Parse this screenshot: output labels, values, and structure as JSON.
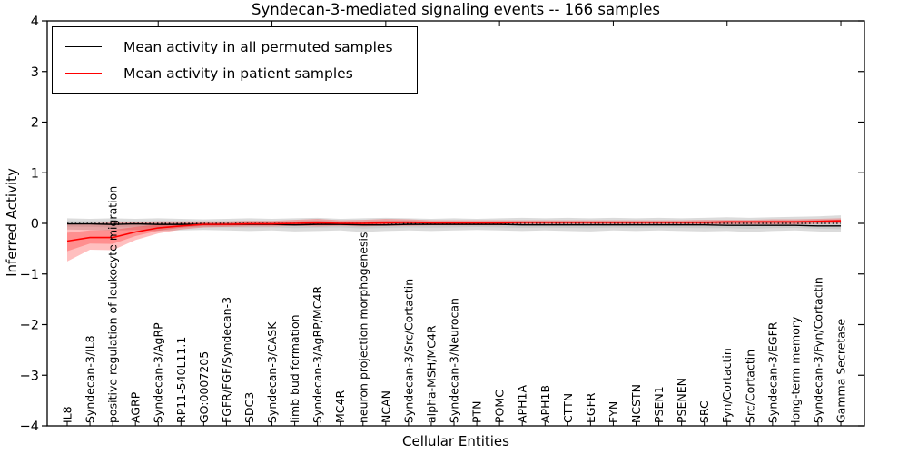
{
  "figure": {
    "title": "Syndecan-3-mediated signaling events -- 166 samples",
    "xlabel": "Cellular Entities",
    "ylabel": "Inferred Activity"
  },
  "legend": {
    "entries": [
      {
        "label": "Mean activity in all permuted samples",
        "color": "#000000"
      },
      {
        "label": "Mean activity in patient samples",
        "color": "#ff0000"
      }
    ]
  },
  "chart_data": {
    "type": "line",
    "title": "Syndecan-3-mediated signaling events -- 166 samples",
    "xlabel": "Cellular Entities",
    "ylabel": "Inferred Activity",
    "ylim": [
      -4,
      4
    ],
    "yticks": [
      4,
      3,
      2,
      1,
      0,
      -1,
      -2,
      -3,
      -4
    ],
    "grid": false,
    "legend_position": "upper-left",
    "top_tick_indices": [
      4,
      9,
      14,
      19,
      24,
      29,
      34
    ],
    "categories": [
      "IL8",
      "Syndecan-3/IL8",
      "positive regulation of leukocyte migration",
      "AGRP",
      "Syndecan-3/AgRP",
      "RP11-540L11.1",
      "GO:0007205",
      "FGFR/FGF/Syndecan-3",
      "SDC3",
      "Syndecan-3/CASK",
      "limb bud formation",
      "Syndecan-3/AgRP/MC4R",
      "MC4R",
      "neuron projection morphogenesis",
      "NCAN",
      "Syndecan-3/Src/Cortactin",
      "alpha-MSH/MC4R",
      "Syndecan-3/Neurocan",
      "PTN",
      "POMC",
      "APH1A",
      "APH1B",
      "CTTN",
      "EGFR",
      "FYN",
      "NCSTN",
      "PSEN1",
      "PSENEN",
      "SRC",
      "Fyn/Cortactin",
      "Src/Cortactin",
      "Syndecan-3/EGFR",
      "long-term memory",
      "Syndecan-3/Fyn/Cortactin",
      "Gamma Secretase"
    ],
    "series": [
      {
        "name": "Mean activity in all permuted samples",
        "color": "#000000",
        "line_style": "solid",
        "band_color": "#000000",
        "values": [
          -0.01,
          -0.01,
          -0.02,
          -0.01,
          -0.02,
          -0.02,
          -0.02,
          -0.02,
          -0.02,
          -0.02,
          -0.03,
          -0.02,
          -0.02,
          -0.03,
          -0.03,
          -0.02,
          -0.02,
          -0.02,
          -0.02,
          -0.02,
          -0.03,
          -0.03,
          -0.03,
          -0.03,
          -0.03,
          -0.03,
          -0.03,
          -0.03,
          -0.03,
          -0.04,
          -0.04,
          -0.04,
          -0.04,
          -0.05,
          -0.05
        ],
        "band_lower": [
          -0.12,
          -0.13,
          -0.14,
          -0.13,
          -0.15,
          -0.14,
          -0.13,
          -0.14,
          -0.15,
          -0.14,
          -0.16,
          -0.15,
          -0.14,
          -0.17,
          -0.15,
          -0.14,
          -0.15,
          -0.14,
          -0.13,
          -0.14,
          -0.15,
          -0.14,
          -0.15,
          -0.16,
          -0.14,
          -0.15,
          -0.14,
          -0.15,
          -0.16,
          -0.15,
          -0.17,
          -0.15,
          -0.14,
          -0.16,
          -0.18
        ],
        "band_upper": [
          0.1,
          0.09,
          0.1,
          0.09,
          0.1,
          0.09,
          0.08,
          0.09,
          0.1,
          0.09,
          0.1,
          0.11,
          0.09,
          0.1,
          0.11,
          0.1,
          0.09,
          0.1,
          0.09,
          0.1,
          0.11,
          0.1,
          0.11,
          0.1,
          0.11,
          0.1,
          0.11,
          0.1,
          0.11,
          0.12,
          0.11,
          0.12,
          0.13,
          0.14,
          0.16
        ]
      },
      {
        "name": "Mean activity in patient samples",
        "color": "#ff0000",
        "line_style": "solid",
        "band_color": "#ff0000",
        "values": [
          -0.35,
          -0.28,
          -0.28,
          -0.17,
          -0.09,
          -0.05,
          -0.02,
          -0.02,
          -0.01,
          -0.01,
          0.0,
          0.01,
          0.0,
          0.0,
          0.01,
          0.02,
          0.01,
          0.01,
          0.01,
          0.01,
          0.02,
          0.02,
          0.02,
          0.02,
          0.02,
          0.02,
          0.02,
          0.02,
          0.02,
          0.03,
          0.03,
          0.03,
          0.03,
          0.04,
          0.05
        ],
        "band_lower": [
          -0.75,
          -0.52,
          -0.53,
          -0.33,
          -0.2,
          -0.12,
          -0.08,
          -0.07,
          -0.06,
          -0.06,
          -0.05,
          -0.06,
          -0.05,
          -0.06,
          -0.05,
          -0.05,
          -0.04,
          -0.04,
          -0.04,
          -0.04,
          -0.03,
          -0.03,
          -0.03,
          -0.03,
          -0.03,
          -0.03,
          -0.03,
          -0.03,
          -0.03,
          -0.02,
          -0.02,
          -0.02,
          -0.02,
          -0.01,
          0.0
        ],
        "band_upper": [
          -0.02,
          0.0,
          0.02,
          0.03,
          0.04,
          0.04,
          0.04,
          0.04,
          0.05,
          0.05,
          0.07,
          0.09,
          0.06,
          0.07,
          0.09,
          0.08,
          0.06,
          0.06,
          0.06,
          0.06,
          0.06,
          0.06,
          0.06,
          0.06,
          0.06,
          0.06,
          0.06,
          0.06,
          0.07,
          0.07,
          0.07,
          0.08,
          0.08,
          0.09,
          0.1
        ]
      },
      {
        "name": "zero-reference",
        "color": "#000000",
        "line_style": "dotted",
        "constant": 0
      }
    ]
  }
}
